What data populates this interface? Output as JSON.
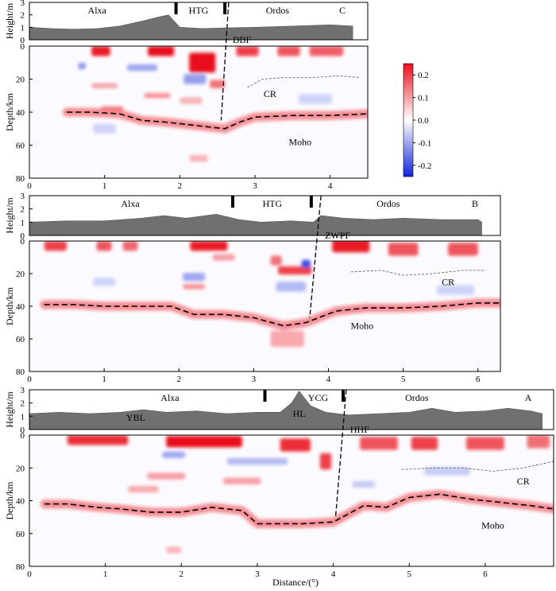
{
  "chart_data": {
    "type": "heatmap",
    "title": "",
    "xlabel": "Distance/(°)",
    "colorbar": {
      "range": [
        -0.25,
        0.25
      ],
      "ticks": [
        "0.2",
        "0.1",
        "0.0",
        "-0.1",
        "-0.2"
      ],
      "tick_values": [
        0.2,
        0.1,
        0.0,
        -0.1,
        -0.2
      ],
      "colors": {
        "positive": "#e8101c",
        "zero": "#ffffff",
        "negative": "#1024d8"
      }
    },
    "panels": [
      {
        "id": "C",
        "label": "C",
        "xlim": [
          0,
          4.5
        ],
        "x_ticks": [
          "0",
          "1",
          "2",
          "3",
          "4"
        ],
        "height_ylabel": "Height/m",
        "height_ticks": [
          "3",
          "2",
          "1",
          "0"
        ],
        "height_ylim": [
          0,
          3
        ],
        "depth_ylabel": "Depth/km",
        "depth_ticks": [
          "0",
          "20",
          "40",
          "60",
          "80"
        ],
        "depth_ylim": [
          0,
          80
        ],
        "regions": [
          {
            "name": "Alxa",
            "x": 0.9
          },
          {
            "name": "HTG",
            "x": 2.25
          },
          {
            "name": "Ordos",
            "x": 3.3
          }
        ],
        "boundaries": [
          1.95,
          2.6
        ],
        "fault": {
          "name": "DBF",
          "top_x": 2.65,
          "bottom_x": 2.55,
          "bottom_depth": 45
        },
        "topography": {
          "x": [
            0,
            0.3,
            0.6,
            0.9,
            1.2,
            1.5,
            1.7,
            1.85,
            2.0,
            2.3,
            2.6,
            3.0,
            3.5,
            4.0,
            4.3
          ],
          "h": [
            1.0,
            0.9,
            0.85,
            0.9,
            1.1,
            1.5,
            1.8,
            2.0,
            1.0,
            0.9,
            0.95,
            1.0,
            1.1,
            1.2,
            1.1
          ]
        },
        "moho": {
          "label": "Moho",
          "label_pos": [
            3.6,
            58
          ],
          "x": [
            0.5,
            0.8,
            1.2,
            1.5,
            1.8,
            2.2,
            2.6,
            2.8,
            3.0,
            3.5,
            4.0,
            4.5
          ],
          "depth": [
            40,
            40,
            41,
            45,
            46,
            48,
            50,
            46,
            43,
            42,
            42,
            41
          ]
        },
        "cr": {
          "label": "CR",
          "label_pos": [
            3.2,
            29
          ],
          "x": [
            2.9,
            3.1,
            3.4,
            3.8,
            4.1,
            4.4
          ],
          "depth": [
            25,
            20,
            19,
            19,
            18,
            19
          ]
        },
        "anomalies": [
          {
            "x": 0.95,
            "d": 3,
            "w": 0.25,
            "h": 6,
            "v": 0.24
          },
          {
            "x": 1.75,
            "d": 3,
            "w": 0.35,
            "h": 6,
            "v": 0.26
          },
          {
            "x": 2.3,
            "d": 10,
            "w": 0.35,
            "h": 12,
            "v": 0.25
          },
          {
            "x": 2.9,
            "d": 3,
            "w": 0.3,
            "h": 6,
            "v": 0.2
          },
          {
            "x": 3.45,
            "d": 3,
            "w": 0.3,
            "h": 6,
            "v": 0.18
          },
          {
            "x": 3.95,
            "d": 3,
            "w": 0.45,
            "h": 6,
            "v": 0.17
          },
          {
            "x": 0.7,
            "d": 12,
            "w": 0.1,
            "h": 4,
            "v": -0.12
          },
          {
            "x": 1.5,
            "d": 13,
            "w": 0.4,
            "h": 4,
            "v": -0.1
          },
          {
            "x": 2.2,
            "d": 20,
            "w": 0.3,
            "h": 6,
            "v": -0.11
          },
          {
            "x": 2.5,
            "d": 23,
            "w": 0.2,
            "h": 5,
            "v": 0.15
          },
          {
            "x": 1.0,
            "d": 24,
            "w": 0.35,
            "h": 3,
            "v": 0.1
          },
          {
            "x": 1.7,
            "d": 30,
            "w": 0.35,
            "h": 3,
            "v": 0.12
          },
          {
            "x": 2.15,
            "d": 33,
            "w": 0.3,
            "h": 4,
            "v": 0.08
          },
          {
            "x": 1.1,
            "d": 38,
            "w": 0.3,
            "h": 3,
            "v": 0.14
          },
          {
            "x": 2.25,
            "d": 68,
            "w": 0.25,
            "h": 4,
            "v": 0.08
          },
          {
            "x": 1.0,
            "d": 50,
            "w": 0.3,
            "h": 6,
            "v": -0.05
          },
          {
            "x": 3.8,
            "d": 32,
            "w": 0.45,
            "h": 6,
            "v": -0.05
          }
        ]
      },
      {
        "id": "B",
        "label": "B",
        "xlim": [
          0,
          6.3
        ],
        "x_ticks": [
          "0",
          "1",
          "2",
          "3",
          "4",
          "5",
          "6"
        ],
        "height_ylabel": "Height/m",
        "height_ticks": [
          "3",
          "2",
          "1",
          "0"
        ],
        "height_ylim": [
          0,
          3
        ],
        "depth_ylabel": "Depth/km",
        "depth_ticks": [
          "0",
          "20",
          "40",
          "60",
          "80"
        ],
        "depth_ylim": [
          0,
          80
        ],
        "regions": [
          {
            "name": "Alxa",
            "x": 1.35
          },
          {
            "name": "HTG",
            "x": 3.25
          },
          {
            "name": "Ordos",
            "x": 4.8
          }
        ],
        "boundaries": [
          2.72,
          3.77
        ],
        "fault": {
          "name": "ZWPF",
          "top_x": 3.9,
          "bottom_x": 3.75,
          "bottom_depth": 47
        },
        "topography": {
          "x": [
            0,
            0.5,
            1.0,
            1.5,
            1.8,
            2.1,
            2.5,
            2.8,
            3.1,
            3.5,
            3.8,
            3.9,
            4.2,
            4.6,
            5.0,
            5.5,
            6.0,
            6.05
          ],
          "h": [
            1.0,
            1.1,
            1.1,
            1.3,
            1.5,
            1.3,
            1.6,
            1.2,
            1.0,
            1.1,
            1.0,
            1.5,
            1.3,
            1.2,
            1.3,
            1.2,
            1.2,
            1.0
          ]
        },
        "moho": {
          "label": "Moho",
          "label_pos": [
            4.45,
            52
          ],
          "x": [
            0.2,
            0.6,
            1.0,
            1.5,
            1.9,
            2.2,
            2.6,
            3.0,
            3.4,
            3.7,
            4.1,
            4.5,
            5.0,
            5.5,
            6.0,
            6.3
          ],
          "depth": [
            39,
            39,
            40,
            40,
            40,
            45,
            45,
            47,
            52,
            50,
            43,
            41,
            41,
            40,
            38,
            38
          ]
        },
        "cr": {
          "label": "CR",
          "label_pos": [
            5.6,
            25
          ],
          "x": [
            4.3,
            4.7,
            5.0,
            5.4,
            5.8,
            6.1
          ],
          "depth": [
            19,
            18,
            21,
            20,
            18,
            18
          ]
        },
        "anomalies": [
          {
            "x": 0.35,
            "d": 3,
            "w": 0.3,
            "h": 6,
            "v": 0.2
          },
          {
            "x": 1.0,
            "d": 3,
            "w": 0.2,
            "h": 6,
            "v": 0.18
          },
          {
            "x": 1.35,
            "d": 3,
            "w": 0.2,
            "h": 6,
            "v": 0.16
          },
          {
            "x": 2.4,
            "d": 3,
            "w": 0.5,
            "h": 6,
            "v": 0.24
          },
          {
            "x": 2.6,
            "d": 10,
            "w": 0.3,
            "h": 4,
            "v": 0.1
          },
          {
            "x": 4.3,
            "d": 3,
            "w": 0.5,
            "h": 8,
            "v": 0.24
          },
          {
            "x": 5.0,
            "d": 5,
            "w": 0.4,
            "h": 8,
            "v": 0.18
          },
          {
            "x": 5.8,
            "d": 5,
            "w": 0.4,
            "h": 8,
            "v": 0.18
          },
          {
            "x": 3.3,
            "d": 12,
            "w": 0.15,
            "h": 6,
            "v": 0.15
          },
          {
            "x": 3.55,
            "d": 18,
            "w": 0.45,
            "h": 5,
            "v": 0.2
          },
          {
            "x": 3.7,
            "d": 14,
            "w": 0.12,
            "h": 5,
            "v": -0.2
          },
          {
            "x": 3.5,
            "d": 28,
            "w": 0.4,
            "h": 6,
            "v": -0.08
          },
          {
            "x": 2.2,
            "d": 22,
            "w": 0.3,
            "h": 5,
            "v": -0.1
          },
          {
            "x": 2.2,
            "d": 28,
            "w": 0.3,
            "h": 3,
            "v": 0.12
          },
          {
            "x": 3.45,
            "d": 60,
            "w": 0.45,
            "h": 10,
            "v": 0.09
          },
          {
            "x": 1.0,
            "d": 25,
            "w": 0.3,
            "h": 5,
            "v": -0.05
          },
          {
            "x": 5.7,
            "d": 30,
            "w": 0.5,
            "h": 6,
            "v": -0.05
          }
        ]
      },
      {
        "id": "A",
        "label": "A",
        "xlim": [
          0,
          6.9
        ],
        "x_ticks": [
          "0",
          "1",
          "2",
          "3",
          "4",
          "5",
          "6"
        ],
        "height_ylabel": "Height/m",
        "height_ticks": [
          "3",
          "2",
          "1",
          "0"
        ],
        "height_ylim": [
          0,
          3
        ],
        "depth_ylabel": "Depth/km",
        "depth_ticks": [
          "0",
          "20",
          "40",
          "60",
          "80"
        ],
        "depth_ylim": [
          0,
          80
        ],
        "regions": [
          {
            "name": "Alxa",
            "x": 1.85
          },
          {
            "name": "YCG",
            "x": 3.8
          },
          {
            "name": "Ordos",
            "x": 5.1
          }
        ],
        "sublabels": [
          {
            "name": "YBL",
            "x": 1.4,
            "h": 0.9
          },
          {
            "name": "HL",
            "x": 3.55,
            "h": 1.2
          }
        ],
        "boundaries": [
          3.1,
          4.13
        ],
        "fault": {
          "name": "HHF",
          "top_x": 4.17,
          "bottom_x": 4.03,
          "bottom_depth": 50
        },
        "topography": {
          "x": [
            0,
            0.4,
            0.8,
            1.2,
            1.5,
            1.8,
            2.2,
            2.6,
            3.0,
            3.3,
            3.45,
            3.55,
            3.7,
            3.9,
            4.2,
            4.6,
            5.0,
            5.3,
            5.6,
            6.0,
            6.3,
            6.6,
            6.75
          ],
          "h": [
            1.2,
            1.3,
            1.2,
            1.3,
            1.5,
            1.3,
            1.4,
            1.2,
            1.3,
            1.3,
            2.0,
            2.9,
            1.8,
            1.3,
            1.1,
            1.2,
            1.3,
            1.6,
            1.3,
            1.4,
            1.6,
            1.4,
            1.2
          ]
        },
        "moho": {
          "label": "Moho",
          "label_pos": [
            6.1,
            55
          ],
          "x": [
            0.2,
            0.5,
            0.9,
            1.2,
            1.6,
            2.0,
            2.4,
            2.8,
            3.0,
            3.3,
            3.6,
            4.0,
            4.4,
            4.7,
            5.0,
            5.4,
            5.8,
            6.2,
            6.6,
            6.9
          ],
          "depth": [
            42,
            42,
            44,
            45,
            47,
            47,
            44,
            46,
            54,
            54,
            54,
            53,
            43,
            44,
            38,
            36,
            39,
            41,
            43,
            45
          ]
        },
        "cr": {
          "label": "CR",
          "label_pos": [
            6.5,
            28
          ],
          "x": [
            4.9,
            5.3,
            5.7,
            6.1,
            6.5,
            6.9
          ],
          "depth": [
            21,
            20,
            20,
            22,
            20,
            16
          ]
        },
        "anomalies": [
          {
            "x": 0.9,
            "d": 3,
            "w": 0.8,
            "h": 6,
            "v": 0.22
          },
          {
            "x": 2.3,
            "d": 4,
            "w": 1.0,
            "h": 7,
            "v": 0.26
          },
          {
            "x": 3.5,
            "d": 6,
            "w": 0.4,
            "h": 8,
            "v": 0.22
          },
          {
            "x": 3.9,
            "d": 16,
            "w": 0.15,
            "h": 10,
            "v": 0.2
          },
          {
            "x": 4.6,
            "d": 5,
            "w": 0.5,
            "h": 8,
            "v": 0.18
          },
          {
            "x": 5.2,
            "d": 5,
            "w": 0.35,
            "h": 8,
            "v": 0.2
          },
          {
            "x": 6.0,
            "d": 5,
            "w": 0.5,
            "h": 8,
            "v": 0.18
          },
          {
            "x": 6.7,
            "d": 4,
            "w": 0.3,
            "h": 8,
            "v": 0.15
          },
          {
            "x": 3.0,
            "d": 16,
            "w": 0.8,
            "h": 4,
            "v": -0.08
          },
          {
            "x": 1.9,
            "d": 12,
            "w": 0.3,
            "h": 4,
            "v": -0.1
          },
          {
            "x": 1.8,
            "d": 25,
            "w": 0.5,
            "h": 4,
            "v": 0.1
          },
          {
            "x": 2.8,
            "d": 28,
            "w": 0.5,
            "h": 4,
            "v": 0.1
          },
          {
            "x": 1.5,
            "d": 33,
            "w": 0.4,
            "h": 4,
            "v": 0.09
          },
          {
            "x": 1.9,
            "d": 70,
            "w": 0.2,
            "h": 4,
            "v": 0.08
          },
          {
            "x": 5.5,
            "d": 22,
            "w": 0.6,
            "h": 5,
            "v": -0.06
          },
          {
            "x": 4.4,
            "d": 30,
            "w": 0.3,
            "h": 4,
            "v": -0.06
          }
        ]
      }
    ]
  }
}
